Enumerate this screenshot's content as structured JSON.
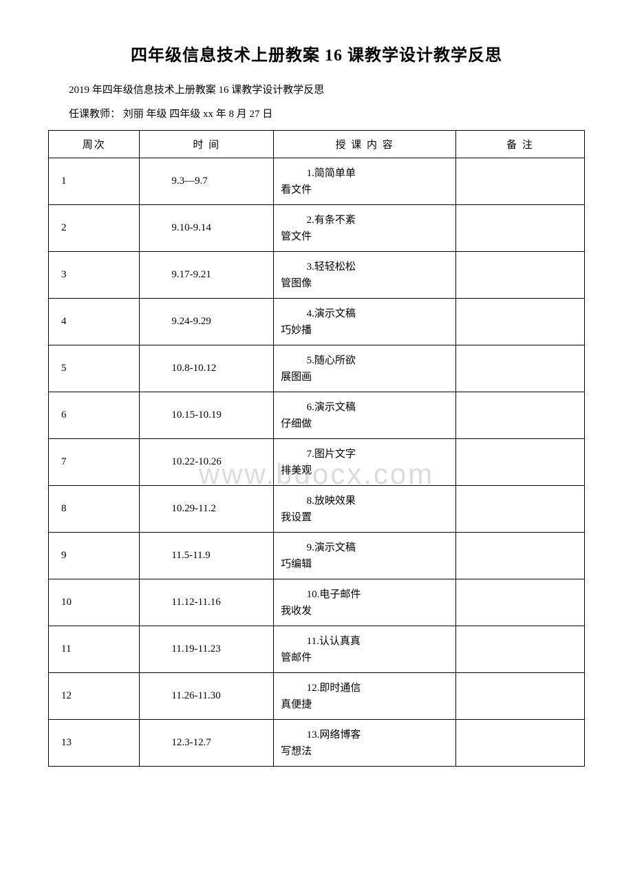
{
  "title": "四年级信息技术上册教案 16 课教学设计教学反思",
  "subtitle": "2019 年四年级信息技术上册教案 16 课教学设计教学反思",
  "info_line": "任课教师：  刘丽  年级 四年级  xx 年 8 月 27 日",
  "watermark": "www.bdocx.com",
  "columns": {
    "week": "周次",
    "time": "时 间",
    "content": "授 课 内 容",
    "note": "备 注"
  },
  "rows": [
    {
      "week": "1",
      "time": "9.3—9.7",
      "content_1": "1.简简单单",
      "content_2": "看文件",
      "note": ""
    },
    {
      "week": "2",
      "time": "9.10-9.14",
      "content_1": "2.有条不紊",
      "content_2": "管文件",
      "note": ""
    },
    {
      "week": "3",
      "time": "9.17-9.21",
      "content_1": "3.轻轻松松",
      "content_2": "管图像",
      "note": ""
    },
    {
      "week": "4",
      "time": "9.24-9.29",
      "content_1": "4.演示文稿",
      "content_2": "巧妙播",
      "note": ""
    },
    {
      "week": "5",
      "time": "10.8-10.12",
      "content_1": "5.随心所欲",
      "content_2": "展图画",
      "note": ""
    },
    {
      "week": "6",
      "time": "10.15-10.19",
      "content_1": "6.演示文稿",
      "content_2": "仔细做",
      "note": ""
    },
    {
      "week": "7",
      "time": "10.22-10.26",
      "content_1": "7.图片文字",
      "content_2": "排美观",
      "note": ""
    },
    {
      "week": "8",
      "time": "10.29-11.2",
      "content_1": "8.放映效果",
      "content_2": "我设置",
      "note": ""
    },
    {
      "week": "9",
      "time": "11.5-11.9",
      "content_1": "9.演示文稿",
      "content_2": "巧编辑",
      "note": ""
    },
    {
      "week": "10",
      "time": "11.12-11.16",
      "content_1": "10.电子邮件",
      "content_2": "我收发",
      "note": ""
    },
    {
      "week": "11",
      "time": "11.19-11.23",
      "content_1": "11.认认真真",
      "content_2": "管邮件",
      "note": ""
    },
    {
      "week": "12",
      "time": "11.26-11.30",
      "content_1": "12.即时通信",
      "content_2": "真便捷",
      "note": ""
    },
    {
      "week": "13",
      "time": "12.3-12.7",
      "content_1": "13.网络博客",
      "content_2": "写想法",
      "note": ""
    }
  ]
}
